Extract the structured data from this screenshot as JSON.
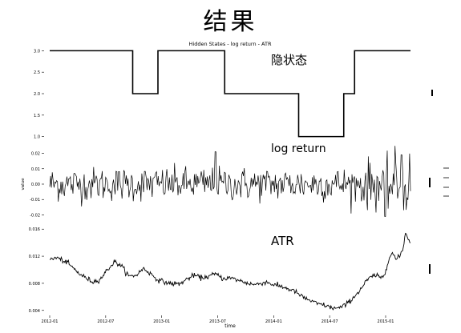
{
  "slide_title": "结果",
  "chart_data": {
    "type": "line",
    "title": "Hidden States - log return - ATR",
    "xlabel": "time",
    "x_ticks": [
      "2012-01",
      "2012-07",
      "2013-01",
      "2013-07",
      "2014-01",
      "2014-07",
      "2015-01"
    ],
    "panels": [
      {
        "id": "hidden-states",
        "annotation": "隐状态",
        "y_ticks": [
          "3.0",
          "2.5",
          "2.0",
          "1.5",
          "1.0"
        ],
        "ylim": [
          0.9,
          3.1
        ],
        "segments": [
          {
            "x0": 0.0,
            "x1": 0.23,
            "y": 3.0
          },
          {
            "x0": 0.23,
            "x1": 0.3,
            "y": 2.0
          },
          {
            "x0": 0.3,
            "x1": 0.485,
            "y": 3.0
          },
          {
            "x0": 0.485,
            "x1": 0.69,
            "y": 2.0
          },
          {
            "x0": 0.69,
            "x1": 0.815,
            "y": 1.0
          },
          {
            "x0": 0.815,
            "x1": 0.845,
            "y": 2.0
          },
          {
            "x0": 0.845,
            "x1": 1.0,
            "y": 3.0
          }
        ]
      },
      {
        "id": "log-return",
        "annotation": "log return",
        "ylabel": "value",
        "y_ticks": [
          "0.02",
          "0.01",
          "0.00",
          "-0.01",
          "-0.02"
        ],
        "ylim": [
          -0.026,
          0.026
        ]
      },
      {
        "id": "atr",
        "annotation": "ATR",
        "y_ticks": [
          "0.016",
          "0.012",
          "0.008",
          "0.004"
        ],
        "ylim": [
          0.0035,
          0.0165
        ],
        "anchors": [
          [
            0.0,
            0.0115
          ],
          [
            0.02,
            0.0118
          ],
          [
            0.05,
            0.011
          ],
          [
            0.08,
            0.0095
          ],
          [
            0.1,
            0.0088
          ],
          [
            0.12,
            0.0082
          ],
          [
            0.14,
            0.0086
          ],
          [
            0.16,
            0.01
          ],
          [
            0.18,
            0.0112
          ],
          [
            0.2,
            0.0105
          ],
          [
            0.22,
            0.009
          ],
          [
            0.24,
            0.0092
          ],
          [
            0.26,
            0.0102
          ],
          [
            0.28,
            0.0094
          ],
          [
            0.3,
            0.0085
          ],
          [
            0.33,
            0.008
          ],
          [
            0.36,
            0.0079
          ],
          [
            0.38,
            0.0086
          ],
          [
            0.4,
            0.0092
          ],
          [
            0.42,
            0.0088
          ],
          [
            0.44,
            0.009
          ],
          [
            0.46,
            0.0094
          ],
          [
            0.48,
            0.0087
          ],
          [
            0.5,
            0.0088
          ],
          [
            0.52,
            0.0085
          ],
          [
            0.55,
            0.008
          ],
          [
            0.57,
            0.0078
          ],
          [
            0.6,
            0.0082
          ],
          [
            0.62,
            0.0078
          ],
          [
            0.65,
            0.0074
          ],
          [
            0.68,
            0.0068
          ],
          [
            0.7,
            0.006
          ],
          [
            0.72,
            0.0055
          ],
          [
            0.74,
            0.005
          ],
          [
            0.76,
            0.0048
          ],
          [
            0.78,
            0.0044
          ],
          [
            0.8,
            0.0043
          ],
          [
            0.82,
            0.0048
          ],
          [
            0.84,
            0.0058
          ],
          [
            0.86,
            0.007
          ],
          [
            0.88,
            0.0085
          ],
          [
            0.9,
            0.0092
          ],
          [
            0.92,
            0.0088
          ],
          [
            0.93,
            0.0095
          ],
          [
            0.94,
            0.0118
          ],
          [
            0.95,
            0.0125
          ],
          [
            0.96,
            0.0115
          ],
          [
            0.97,
            0.012
          ],
          [
            0.98,
            0.0132
          ],
          [
            0.985,
            0.0155
          ],
          [
            0.99,
            0.015
          ],
          [
            1.0,
            0.014
          ]
        ]
      }
    ],
    "series_color": "#000000",
    "grid": false
  }
}
